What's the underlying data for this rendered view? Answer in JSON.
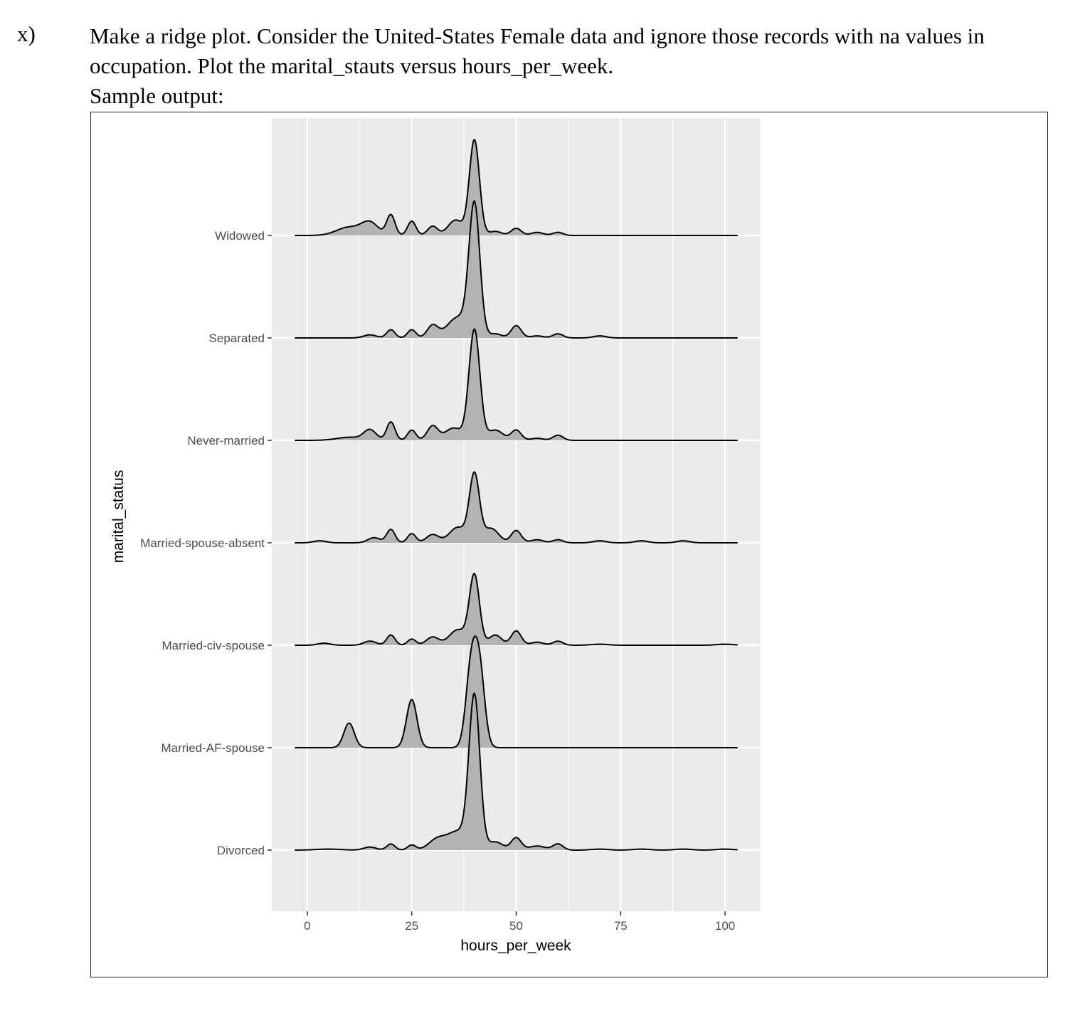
{
  "question": {
    "number": "x)",
    "line1": "Make a ridge plot.  Consider the United-States Female data and ignore those records with na values in",
    "line2": "occupation.  Plot the marital_stauts versus hours_per_week.",
    "line3": "Sample output:"
  },
  "chart_data": {
    "type": "area",
    "subtype": "ridgeline",
    "title": "",
    "xlabel": "hours_per_week",
    "ylabel": "marital_status",
    "xlim": [
      -8.5,
      108.5
    ],
    "x_range": [
      -3,
      103
    ],
    "xticks": [
      "0",
      "25",
      "50",
      "75",
      "100"
    ],
    "xtick_values": [
      0,
      25,
      50,
      75,
      100
    ],
    "categories": [
      "Divorced",
      "Married-AF-spouse",
      "Married-civ-spouse",
      "Married-spouse-absent",
      "Never-married",
      "Separated",
      "Widowed"
    ],
    "grid": true,
    "background": "#ebebeb",
    "fill_color": "#b3b3b3",
    "line_color": "#000000",
    "series": [
      {
        "name": "Divorced",
        "peak_height": 1.63,
        "peaks": [
          {
            "x": 40,
            "h": 1.48,
            "w": 1.3
          },
          {
            "x": 36,
            "h": 0.18,
            "w": 2.5
          },
          {
            "x": 31,
            "h": 0.1,
            "w": 2.0
          },
          {
            "x": 20,
            "h": 0.06,
            "w": 1.0
          },
          {
            "x": 25,
            "h": 0.05,
            "w": 1.0
          },
          {
            "x": 15,
            "h": 0.03,
            "w": 1.5
          },
          {
            "x": 45,
            "h": 0.08,
            "w": 1.8
          },
          {
            "x": 50,
            "h": 0.12,
            "w": 1.2
          },
          {
            "x": 55,
            "h": 0.04,
            "w": 2.0
          },
          {
            "x": 60,
            "h": 0.06,
            "w": 1.2
          },
          {
            "x": 70,
            "h": 0.01,
            "w": 2.0
          },
          {
            "x": 80,
            "h": 0.01,
            "w": 2.0
          },
          {
            "x": 90,
            "h": 0.01,
            "w": 2.0
          },
          {
            "x": 100,
            "h": 0.01,
            "w": 2.0
          },
          {
            "x": 5,
            "h": 0.01,
            "w": 3.0
          }
        ]
      },
      {
        "name": "Married-AF-spouse",
        "peak_height": 1.13,
        "peaks": [
          {
            "x": 10,
            "h": 0.24,
            "w": 1.25
          },
          {
            "x": 25,
            "h": 0.47,
            "w": 1.25
          },
          {
            "x": 39.2,
            "h": 0.75,
            "w": 1.25
          },
          {
            "x": 41.2,
            "h": 0.75,
            "w": 1.25
          }
        ]
      },
      {
        "name": "Married-civ-spouse",
        "peak_height": 0.8,
        "peaks": [
          {
            "x": 40,
            "h": 0.68,
            "w": 1.2
          },
          {
            "x": 36,
            "h": 0.15,
            "w": 2.0
          },
          {
            "x": 30,
            "h": 0.08,
            "w": 1.5
          },
          {
            "x": 20,
            "h": 0.1,
            "w": 1.0
          },
          {
            "x": 25,
            "h": 0.06,
            "w": 1.0
          },
          {
            "x": 15,
            "h": 0.04,
            "w": 1.5
          },
          {
            "x": 45,
            "h": 0.1,
            "w": 1.5
          },
          {
            "x": 50,
            "h": 0.14,
            "w": 1.2
          },
          {
            "x": 55,
            "h": 0.03,
            "w": 1.5
          },
          {
            "x": 60,
            "h": 0.04,
            "w": 1.2
          },
          {
            "x": 4,
            "h": 0.02,
            "w": 1.5
          },
          {
            "x": 70,
            "h": 0.01,
            "w": 2.0
          },
          {
            "x": 100,
            "h": 0.01,
            "w": 2.0
          }
        ]
      },
      {
        "name": "Married-spouse-absent",
        "peak_height": 0.86,
        "peaks": [
          {
            "x": 40,
            "h": 0.66,
            "w": 1.2
          },
          {
            "x": 36,
            "h": 0.15,
            "w": 2.0
          },
          {
            "x": 30,
            "h": 0.08,
            "w": 1.5
          },
          {
            "x": 20,
            "h": 0.13,
            "w": 1.0
          },
          {
            "x": 25,
            "h": 0.09,
            "w": 1.0
          },
          {
            "x": 16,
            "h": 0.05,
            "w": 1.5
          },
          {
            "x": 44,
            "h": 0.14,
            "w": 1.8
          },
          {
            "x": 50,
            "h": 0.12,
            "w": 1.2
          },
          {
            "x": 55,
            "h": 0.03,
            "w": 1.5
          },
          {
            "x": 60,
            "h": 0.03,
            "w": 1.2
          },
          {
            "x": 70,
            "h": 0.02,
            "w": 1.5
          },
          {
            "x": 80,
            "h": 0.02,
            "w": 1.5
          },
          {
            "x": 90,
            "h": 0.02,
            "w": 1.5
          },
          {
            "x": 3,
            "h": 0.02,
            "w": 1.5
          }
        ]
      },
      {
        "name": "Never-married",
        "peak_height": 1.24,
        "peaks": [
          {
            "x": 40,
            "h": 1.08,
            "w": 1.3
          },
          {
            "x": 35,
            "h": 0.12,
            "w": 2.0
          },
          {
            "x": 30,
            "h": 0.14,
            "w": 1.3
          },
          {
            "x": 20,
            "h": 0.18,
            "w": 1.0
          },
          {
            "x": 25,
            "h": 0.1,
            "w": 1.0
          },
          {
            "x": 15,
            "h": 0.1,
            "w": 1.5
          },
          {
            "x": 10,
            "h": 0.03,
            "w": 3.0
          },
          {
            "x": 45,
            "h": 0.1,
            "w": 1.8
          },
          {
            "x": 50,
            "h": 0.1,
            "w": 1.2
          },
          {
            "x": 55,
            "h": 0.02,
            "w": 1.5
          },
          {
            "x": 60,
            "h": 0.05,
            "w": 1.2
          }
        ]
      },
      {
        "name": "Separated",
        "peak_height": 1.45,
        "peaks": [
          {
            "x": 40,
            "h": 1.28,
            "w": 1.3
          },
          {
            "x": 36,
            "h": 0.2,
            "w": 2.5
          },
          {
            "x": 30,
            "h": 0.12,
            "w": 1.3
          },
          {
            "x": 20,
            "h": 0.08,
            "w": 1.0
          },
          {
            "x": 25,
            "h": 0.08,
            "w": 1.0
          },
          {
            "x": 15,
            "h": 0.03,
            "w": 1.5
          },
          {
            "x": 45,
            "h": 0.04,
            "w": 1.5
          },
          {
            "x": 50,
            "h": 0.12,
            "w": 1.2
          },
          {
            "x": 55,
            "h": 0.02,
            "w": 1.5
          },
          {
            "x": 60,
            "h": 0.04,
            "w": 1.2
          },
          {
            "x": 70,
            "h": 0.02,
            "w": 1.5
          }
        ]
      },
      {
        "name": "Widowed",
        "peak_height": 1.17,
        "peaks": [
          {
            "x": 40,
            "h": 0.93,
            "w": 1.2
          },
          {
            "x": 35.5,
            "h": 0.15,
            "w": 1.8
          },
          {
            "x": 30,
            "h": 0.09,
            "w": 1.2
          },
          {
            "x": 20,
            "h": 0.2,
            "w": 1.0
          },
          {
            "x": 25,
            "h": 0.14,
            "w": 1.0
          },
          {
            "x": 15,
            "h": 0.12,
            "w": 2.0
          },
          {
            "x": 10,
            "h": 0.08,
            "w": 3.0
          },
          {
            "x": 45,
            "h": 0.04,
            "w": 1.5
          },
          {
            "x": 50,
            "h": 0.07,
            "w": 1.2
          },
          {
            "x": 55,
            "h": 0.03,
            "w": 1.5
          },
          {
            "x": 60,
            "h": 0.03,
            "w": 1.2
          }
        ]
      }
    ]
  }
}
